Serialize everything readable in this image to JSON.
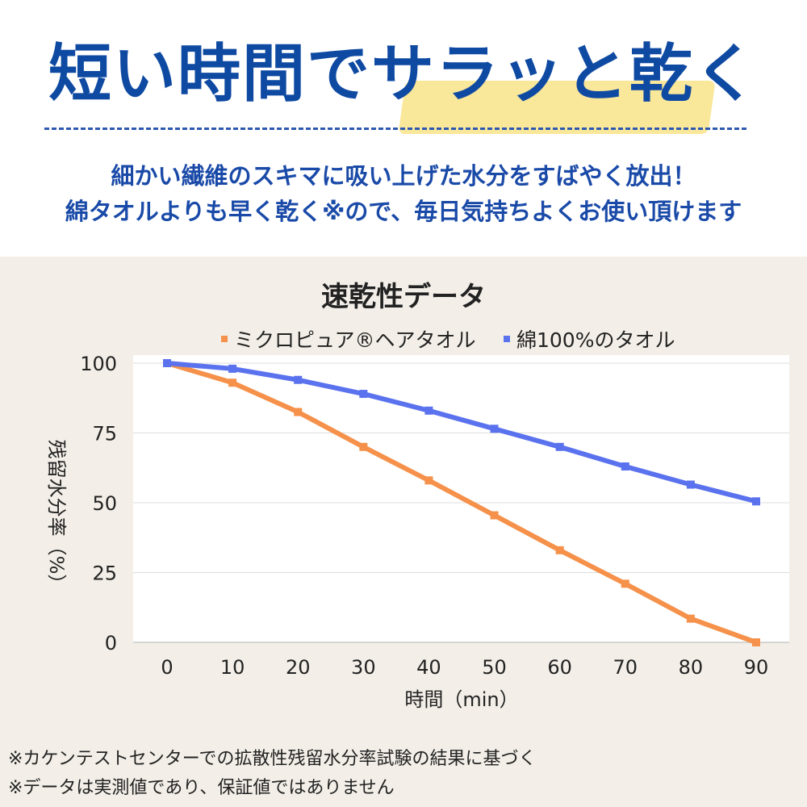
{
  "header": {
    "headline": "短い時間でサラッと乾く",
    "subtitle_line1": "細かい繊維のスキマに吸い上げた水分をすばやく放出！",
    "subtitle_line2": "綿タオルよりも早く乾く※ので、毎日気持ちよくお使い頂けます"
  },
  "colors": {
    "headline": "#0f4aa2",
    "highlight": "#f8e48f",
    "background_bottom": "#f3efe8"
  },
  "chart_data": {
    "type": "line",
    "title": "速乾性データ",
    "xlabel": "時間（min）",
    "ylabel": "残留水分率（%）",
    "x": [
      0,
      10,
      20,
      30,
      40,
      50,
      60,
      70,
      80,
      90
    ],
    "ylim": [
      0,
      100
    ],
    "yticks": [
      0,
      25,
      50,
      75,
      100
    ],
    "grid": true,
    "legend_position": "top",
    "series": [
      {
        "name": "ミクロピュア®ヘアタオル",
        "color": "#f5914a",
        "values": [
          100,
          93,
          82.5,
          70,
          58,
          45.5,
          33,
          21,
          8.5,
          0
        ]
      },
      {
        "name": "綿100%のタオル",
        "color": "#5a72ee",
        "values": [
          100,
          98,
          94,
          89,
          83,
          76.5,
          70,
          63,
          56.5,
          50.5
        ]
      }
    ]
  },
  "notes": {
    "note1": "※カケンテストセンターでの拡散性残留水分率試験の結果に基づく",
    "note2": "※データは実測値であり、保証値ではありません"
  }
}
